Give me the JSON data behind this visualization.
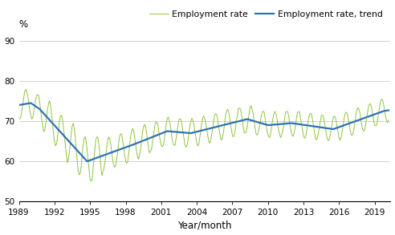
{
  "title": "",
  "ylabel": "%",
  "xlabel": "Year/month",
  "xlim_start": 1989.0,
  "xlim_end": 2020.33,
  "ylim": [
    50,
    92
  ],
  "yticks": [
    50,
    60,
    70,
    80,
    90
  ],
  "xticks": [
    1989,
    1992,
    1995,
    1998,
    2001,
    2004,
    2007,
    2010,
    2013,
    2016,
    2019
  ],
  "line_color": "#3070B8",
  "seasonal_color": "#8DC63F",
  "legend_seasonal": "Employment rate",
  "legend_trend": "Employment rate, trend",
  "background_color": "#ffffff",
  "grid_color": "#BFBFBF"
}
